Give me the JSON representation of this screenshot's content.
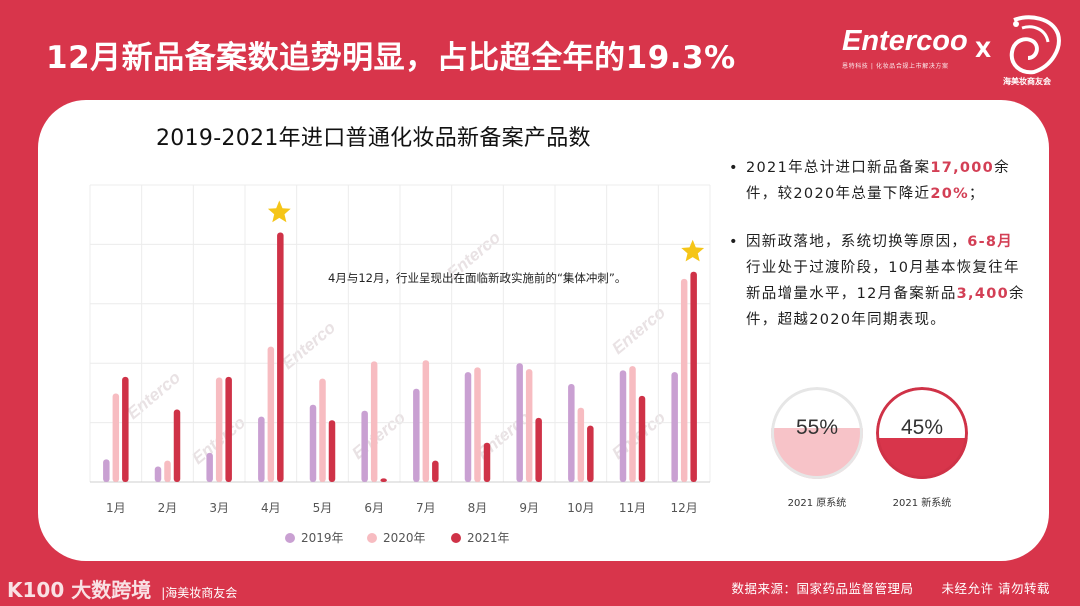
{
  "header": {
    "headline": "12月新品备案数追势明显，占比超全年的19.3%",
    "brand_name": "Entercoo",
    "brand_tagline": "恩特科技 | 化妆品合规上市解决方案",
    "cross": "X",
    "partner_name": "海美妆商友会"
  },
  "chart": {
    "title": "2019-2021年进口普通化妆品新备案产品数",
    "annotation": "4月与12月，行业呈现出在面临新政实施前的“集体冲刺”。",
    "watermark": "Enterco"
  },
  "chart_data": {
    "type": "bar",
    "title": "2019-2021年进口普通化妆品新备案产品数",
    "categories": [
      "1月",
      "2月",
      "3月",
      "4月",
      "5月",
      "6月",
      "7月",
      "8月",
      "9月",
      "10月",
      "11月",
      "12月"
    ],
    "series": [
      {
        "name": "2019年",
        "color": "#c9a0d2",
        "values": [
          380,
          260,
          490,
          1100,
          1300,
          1200,
          1570,
          1850,
          2000,
          1650,
          1880,
          1850
        ]
      },
      {
        "name": "2020年",
        "color": "#f7bcc1",
        "values": [
          1490,
          360,
          1760,
          2280,
          1740,
          2030,
          2050,
          1930,
          1900,
          1250,
          1950,
          3420
        ]
      },
      {
        "name": "2021年",
        "color": "#cf3247",
        "values": [
          1770,
          1220,
          1770,
          4200,
          1040,
          60,
          360,
          660,
          1080,
          950,
          1450,
          3540
        ]
      }
    ],
    "highlighted": [
      "4月",
      "12月"
    ],
    "ylim": [
      0,
      5000
    ],
    "grid": true,
    "legend_position": "bottom"
  },
  "notes": [
    {
      "prefix": "2021年总计进口新品备案",
      "highlight": "17,000",
      "middle": "余件，较2020年总量下降近",
      "highlight2": "20%",
      "suffix": "；"
    },
    {
      "prefix": "因新政落地，系统切换等原因，",
      "highlight": "6-8月",
      "middle": "行业处于过渡阶段，10月基本恢复往年新品增量水平，12月备案新品",
      "highlight2": "3,400",
      "suffix": "余件，超越2020年同期表现。"
    }
  ],
  "gauges": [
    {
      "label": "2021 原系统",
      "percent_text": "55%",
      "fraction": 0.55,
      "fill_color": "#f7c3c8",
      "ring_color": "#e6e6e6"
    },
    {
      "label": "2021 新系统",
      "percent_text": "45%",
      "fraction": 0.45,
      "fill_color": "#d8354b",
      "ring_color": "#cf3247"
    }
  ],
  "footer": {
    "logo_text": "K100 大数跨境",
    "partner": "|海美妆商友会",
    "source": "数据来源：国家药品监督管理局",
    "copyright": "未经允许 请勿转载"
  }
}
